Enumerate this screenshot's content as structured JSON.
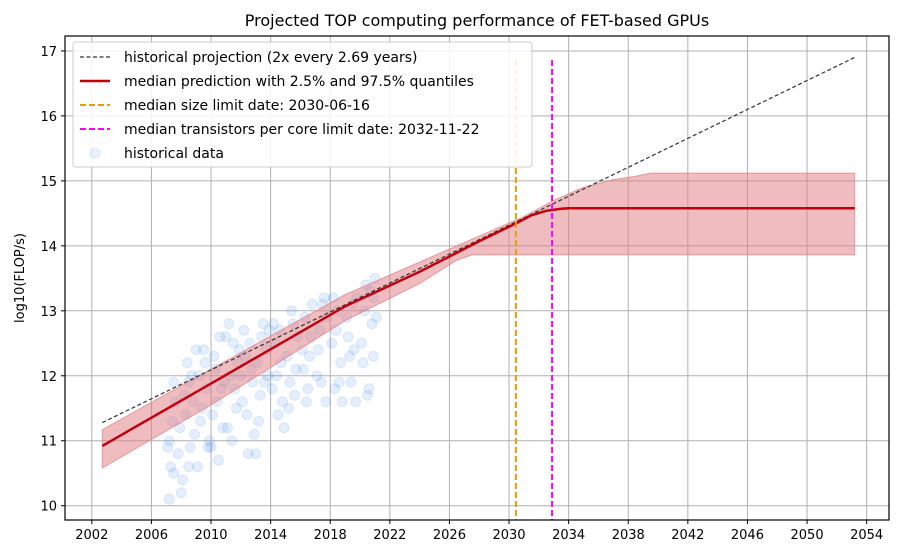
{
  "chart_data": {
    "type": "line",
    "title": "Projected TOP computing performance of FET-based GPUs",
    "xlabel": "",
    "ylabel": "log10(FLOP/s)",
    "xlim": [
      2000.2,
      2055.5
    ],
    "ylim": [
      9.78,
      17.23
    ],
    "grid": true,
    "legend_position": "top-left",
    "x_ticks": [
      2002,
      2006,
      2010,
      2014,
      2018,
      2022,
      2026,
      2030,
      2034,
      2038,
      2042,
      2046,
      2050,
      2054
    ],
    "y_ticks": [
      10,
      11,
      12,
      13,
      14,
      15,
      16,
      17
    ],
    "legend": [
      "historical projection (2x every 2.69 years)",
      "median prediction with 2.5% and 97.5% quantiles",
      "median size limit date: 2030-06-16",
      "median transistors per core limit date: 2032-11-22",
      "historical data"
    ],
    "colors": {
      "projection": "#333333",
      "median": "#c00010",
      "band": "#e07b80",
      "size_limit": "#e69f00",
      "transistor_limit": "#ff00ff",
      "scatter": "#4a8fe8"
    },
    "historical_projection": [
      [
        2002.7,
        11.28
      ],
      [
        2053.2,
        16.9
      ]
    ],
    "median_prediction": [
      [
        2002.7,
        10.92
      ],
      [
        2010,
        11.88
      ],
      [
        2019,
        13.07
      ],
      [
        2024,
        13.6
      ],
      [
        2028,
        14.07
      ],
      [
        2030.5,
        14.35
      ],
      [
        2031.5,
        14.47
      ],
      [
        2032.5,
        14.54
      ],
      [
        2033.5,
        14.57
      ],
      [
        2034,
        14.58
      ],
      [
        2053.2,
        14.58
      ]
    ],
    "quantile_97_5": [
      [
        2002.7,
        11.17
      ],
      [
        2010,
        12.1
      ],
      [
        2019,
        13.25
      ],
      [
        2028,
        14.15
      ],
      [
        2031,
        14.45
      ],
      [
        2033,
        14.7
      ],
      [
        2035,
        14.9
      ],
      [
        2037,
        15.02
      ],
      [
        2038.5,
        15.07
      ],
      [
        2039.5,
        15.12
      ],
      [
        2053.2,
        15.12
      ]
    ],
    "quantile_2_5": [
      [
        2002.7,
        10.58
      ],
      [
        2010,
        11.55
      ],
      [
        2019,
        12.85
      ],
      [
        2024,
        13.42
      ],
      [
        2026.5,
        13.78
      ],
      [
        2027.5,
        13.86
      ],
      [
        2053.2,
        13.86
      ]
    ],
    "size_limit_date": 2030.46,
    "transistor_limit_date": 2032.89,
    "vline_ymax": 16.86,
    "historical_data": [
      [
        2007.2,
        10.1
      ],
      [
        2007.3,
        10.6
      ],
      [
        2007.1,
        10.9
      ],
      [
        2007.4,
        11.3
      ],
      [
        2007.5,
        10.5
      ],
      [
        2007.6,
        11.6
      ],
      [
        2007.2,
        11.0
      ],
      [
        2007.8,
        10.8
      ],
      [
        2007.5,
        11.9
      ],
      [
        2007.9,
        11.2
      ],
      [
        2008.1,
        10.4
      ],
      [
        2008.3,
        11.4
      ],
      [
        2008.5,
        10.6
      ],
      [
        2008.7,
        12.0
      ],
      [
        2008.2,
        11.7
      ],
      [
        2008.9,
        11.1
      ],
      [
        2008.4,
        12.2
      ],
      [
        2008.6,
        10.9
      ],
      [
        2008.8,
        11.6
      ],
      [
        2008.0,
        10.2
      ],
      [
        2008.5,
        11.9
      ],
      [
        2009.1,
        10.6
      ],
      [
        2009.3,
        11.3
      ],
      [
        2009.5,
        12.4
      ],
      [
        2009.7,
        11.8
      ],
      [
        2009.2,
        12.0
      ],
      [
        2009.8,
        10.9
      ],
      [
        2009.4,
        11.5
      ],
      [
        2009.6,
        12.2
      ],
      [
        2009.9,
        11.0
      ],
      [
        2009.0,
        12.4
      ],
      [
        2010.1,
        11.4
      ],
      [
        2010.3,
        12.1
      ],
      [
        2010.5,
        10.7
      ],
      [
        2010.7,
        11.8
      ],
      [
        2010.2,
        12.3
      ],
      [
        2010.8,
        11.2
      ],
      [
        2010.4,
        11.6
      ],
      [
        2010.6,
        12.6
      ],
      [
        2010.9,
        11.9
      ],
      [
        2010.0,
        10.9
      ],
      [
        2011.1,
        11.2
      ],
      [
        2011.3,
        12.0
      ],
      [
        2011.5,
        12.5
      ],
      [
        2011.7,
        11.5
      ],
      [
        2011.2,
        12.8
      ],
      [
        2011.8,
        12.2
      ],
      [
        2011.4,
        11.0
      ],
      [
        2011.6,
        11.8
      ],
      [
        2011.9,
        12.4
      ],
      [
        2011.0,
        12.6
      ],
      [
        2012.1,
        11.6
      ],
      [
        2012.3,
        12.3
      ],
      [
        2012.5,
        10.8
      ],
      [
        2012.7,
        12.1
      ],
      [
        2012.2,
        12.7
      ],
      [
        2012.8,
        11.9
      ],
      [
        2012.4,
        11.4
      ],
      [
        2012.6,
        12.5
      ],
      [
        2012.9,
        11.1
      ],
      [
        2012.0,
        12.0
      ],
      [
        2013.1,
        12.2
      ],
      [
        2013.3,
        11.7
      ],
      [
        2013.5,
        12.8
      ],
      [
        2013.7,
        12.4
      ],
      [
        2013.2,
        11.3
      ],
      [
        2013.8,
        12.0
      ],
      [
        2013.4,
        12.6
      ],
      [
        2013.6,
        11.9
      ],
      [
        2013.9,
        12.7
      ],
      [
        2013.0,
        10.8
      ],
      [
        2014.1,
        11.8
      ],
      [
        2014.3,
        12.5
      ],
      [
        2014.5,
        11.4
      ],
      [
        2014.7,
        12.2
      ],
      [
        2014.2,
        12.8
      ],
      [
        2014.8,
        11.6
      ],
      [
        2014.4,
        12.0
      ],
      [
        2014.6,
        12.7
      ],
      [
        2014.9,
        11.2
      ],
      [
        2015.1,
        12.3
      ],
      [
        2015.3,
        11.9
      ],
      [
        2015.5,
        12.8
      ],
      [
        2015.7,
        12.1
      ],
      [
        2015.2,
        11.5
      ],
      [
        2015.8,
        12.6
      ],
      [
        2015.4,
        13.0
      ],
      [
        2015.6,
        11.7
      ],
      [
        2016.1,
        12.4
      ],
      [
        2016.3,
        12.9
      ],
      [
        2016.5,
        11.8
      ],
      [
        2016.7,
        12.6
      ],
      [
        2016.2,
        12.1
      ],
      [
        2016.8,
        13.1
      ],
      [
        2016.4,
        11.6
      ],
      [
        2016.6,
        12.3
      ],
      [
        2017.1,
        12.0
      ],
      [
        2017.3,
        12.7
      ],
      [
        2017.5,
        13.1
      ],
      [
        2017.7,
        11.6
      ],
      [
        2017.2,
        12.4
      ],
      [
        2017.8,
        12.9
      ],
      [
        2017.4,
        11.9
      ],
      [
        2017.6,
        13.2
      ],
      [
        2018.1,
        12.5
      ],
      [
        2018.3,
        11.8
      ],
      [
        2018.5,
        13.0
      ],
      [
        2018.7,
        12.2
      ],
      [
        2018.2,
        13.2
      ],
      [
        2018.8,
        11.6
      ],
      [
        2018.4,
        12.7
      ],
      [
        2018.6,
        11.9
      ],
      [
        2019.1,
        12.9
      ],
      [
        2019.3,
        12.3
      ],
      [
        2019.5,
        13.1
      ],
      [
        2019.7,
        11.6
      ],
      [
        2019.2,
        12.6
      ],
      [
        2019.8,
        13.2
      ],
      [
        2019.4,
        11.9
      ],
      [
        2019.6,
        12.4
      ],
      [
        2020.1,
        12.5
      ],
      [
        2020.3,
        13.0
      ],
      [
        2020.5,
        11.7
      ],
      [
        2020.7,
        13.3
      ],
      [
        2020.2,
        12.2
      ],
      [
        2020.8,
        12.8
      ],
      [
        2020.4,
        13.4
      ],
      [
        2020.6,
        11.8
      ],
      [
        2021.0,
        13.5
      ],
      [
        2020.9,
        13.2
      ],
      [
        2021.1,
        12.9
      ],
      [
        2020.9,
        12.3
      ]
    ]
  }
}
